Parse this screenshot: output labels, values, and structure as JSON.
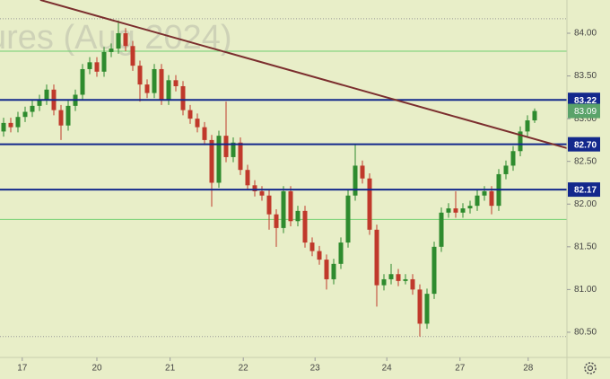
{
  "chart_data": {
    "type": "candlestick",
    "watermark": "ures (Aug 2024)",
    "open": [
      82.85,
      82.95,
      82.9,
      83.02,
      83.08,
      83.15,
      83.22,
      83.34,
      83.1,
      82.92,
      83.15,
      83.28,
      83.58,
      83.66,
      83.55,
      83.78,
      83.82,
      84.0,
      83.85,
      83.62,
      83.4,
      83.3,
      83.58,
      83.22,
      83.45,
      83.38,
      83.1,
      83.0,
      82.9,
      82.75,
      82.25,
      82.8,
      82.55,
      82.72,
      82.4,
      82.22,
      82.15,
      82.1,
      81.88,
      81.72,
      82.15,
      81.8,
      81.92,
      81.55,
      81.45,
      81.35,
      81.12,
      81.3,
      81.55,
      82.1,
      82.45,
      82.3,
      81.7,
      81.05,
      81.12,
      81.18,
      81.1,
      81.12,
      81.0,
      80.6,
      80.95,
      81.5,
      81.9,
      81.95,
      81.9,
      81.95,
      81.98,
      82.1,
      82.15,
      81.98,
      82.35,
      82.45,
      82.62,
      82.85,
      82.98
    ],
    "high": [
      83.01,
      83.01,
      83.08,
      83.14,
      83.21,
      83.28,
      83.4,
      83.4,
      83.16,
      83.21,
      83.34,
      83.64,
      83.72,
      83.72,
      83.84,
      83.88,
      84.15,
      84.06,
      83.91,
      83.68,
      83.46,
      83.64,
      83.64,
      83.51,
      83.51,
      83.44,
      83.16,
      83.06,
      82.96,
      82.81,
      82.86,
      83.2,
      82.78,
      82.78,
      82.46,
      82.28,
      82.21,
      82.16,
      81.94,
      82.21,
      82.21,
      81.98,
      81.98,
      81.61,
      81.51,
      81.41,
      81.36,
      81.61,
      82.16,
      82.7,
      82.51,
      82.36,
      81.76,
      81.18,
      81.3,
      81.24,
      81.18,
      81.18,
      81.06,
      81.01,
      81.56,
      81.96,
      82.01,
      82.15,
      82.01,
      82.04,
      82.16,
      82.21,
      82.21,
      82.41,
      82.51,
      82.68,
      82.91,
      83.04,
      83.12
    ],
    "low": [
      82.79,
      82.84,
      82.84,
      82.96,
      83.02,
      83.09,
      83.16,
      83.04,
      82.75,
      82.86,
      83.09,
      83.22,
      83.52,
      83.49,
      83.49,
      83.72,
      83.76,
      83.79,
      83.56,
      83.2,
      83.24,
      83.24,
      83.16,
      83.16,
      83.32,
      83.04,
      82.94,
      82.84,
      82.69,
      81.97,
      82.19,
      82.49,
      82.49,
      82.34,
      82.16,
      82.09,
      82.04,
      81.7,
      81.5,
      81.66,
      81.74,
      81.74,
      81.49,
      81.39,
      81.29,
      81.0,
      81.06,
      81.24,
      81.49,
      82.04,
      82.24,
      81.64,
      80.8,
      80.99,
      81.06,
      81.04,
      81.06,
      80.94,
      80.45,
      80.54,
      80.89,
      81.44,
      81.84,
      81.84,
      81.84,
      81.89,
      81.92,
      82.04,
      81.88,
      81.92,
      82.29,
      82.39,
      82.56,
      82.79,
      82.95
    ],
    "close": [
      82.95,
      82.9,
      83.02,
      83.08,
      83.15,
      83.22,
      83.34,
      83.1,
      82.92,
      83.15,
      83.28,
      83.58,
      83.66,
      83.55,
      83.78,
      83.82,
      84.0,
      83.85,
      83.62,
      83.4,
      83.3,
      83.58,
      83.22,
      83.45,
      83.38,
      83.1,
      83.0,
      82.9,
      82.75,
      82.25,
      82.8,
      82.55,
      82.72,
      82.4,
      82.22,
      82.15,
      82.1,
      81.88,
      81.72,
      82.15,
      81.8,
      81.92,
      81.55,
      81.45,
      81.35,
      81.12,
      81.3,
      81.55,
      82.1,
      82.45,
      82.3,
      81.7,
      81.05,
      81.12,
      81.18,
      81.1,
      81.12,
      81.0,
      80.6,
      80.95,
      81.5,
      81.9,
      81.95,
      81.9,
      81.95,
      81.98,
      82.1,
      82.15,
      81.98,
      82.35,
      82.45,
      82.62,
      82.85,
      82.98,
      83.09
    ],
    "up_color": "#2e8b2e",
    "down_color": "#c0392b",
    "xlim": [
      -0.5,
      78.5
    ],
    "xticks": [
      {
        "value": 2.6,
        "label": "17"
      },
      {
        "value": 13,
        "label": "20"
      },
      {
        "value": 23.2,
        "label": "21"
      },
      {
        "value": 33.4,
        "label": "22"
      },
      {
        "value": 43.4,
        "label": "23"
      },
      {
        "value": 53.4,
        "label": "24"
      },
      {
        "value": 63.6,
        "label": "27"
      },
      {
        "value": 73.1,
        "label": "28"
      }
    ],
    "ylim": [
      80.205,
      84.389
    ],
    "yticks": [
      {
        "value": 80.5,
        "label": "80.50"
      },
      {
        "value": 81,
        "label": "81.00"
      },
      {
        "value": 81.5,
        "label": "81.50"
      },
      {
        "value": 82,
        "label": "82.00"
      },
      {
        "value": 82.5,
        "label": "82.50"
      },
      {
        "value": 83,
        "label": "83.00"
      },
      {
        "value": 83.5,
        "label": "83.50"
      },
      {
        "value": 84,
        "label": "84.00"
      }
    ],
    "levels": [
      {
        "value": 83.22,
        "label": "83.22",
        "color": "#13288c"
      },
      {
        "value": 82.7,
        "label": "82.70",
        "color": "#13288c"
      },
      {
        "value": 82.17,
        "label": "82.17",
        "color": "#13288c"
      }
    ],
    "green_lines": [
      83.79,
      81.82
    ],
    "green_line_color": "#6fcf6f",
    "dotted_lines": [
      84.17,
      80.45
    ],
    "trendline": {
      "x": [
        5.1,
        78.5
      ],
      "y": [
        84.39,
        82.655
      ],
      "color": "#7b2e2e"
    },
    "last_price_color": "#5aa36a"
  }
}
